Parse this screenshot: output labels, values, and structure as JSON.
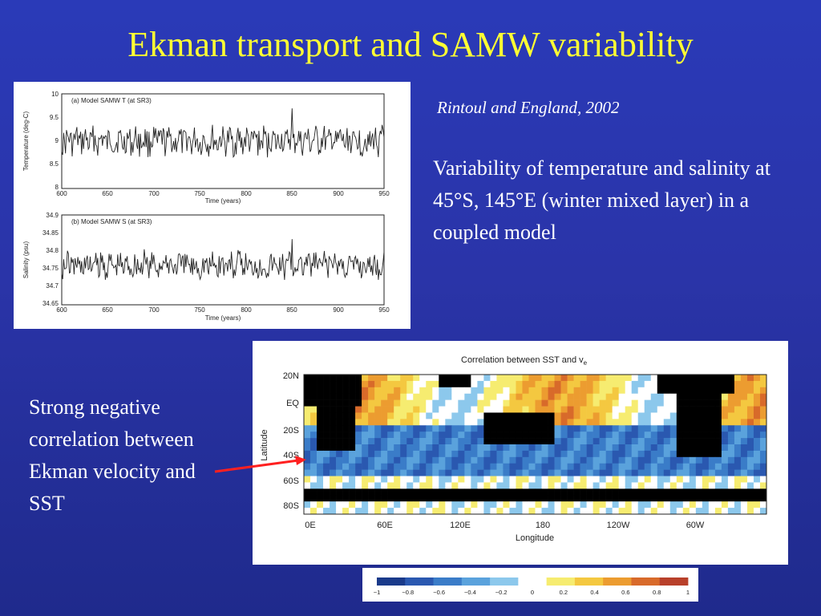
{
  "slide": {
    "title": "Ekman transport and SAMW variability",
    "citation": "Rintoul and England, 2002",
    "description": "Variability of temperature and salinity at 45°S, 145°E (winter mixed layer) in a coupled model",
    "callout": "Strong negative correlation between Ekman velocity and SST"
  },
  "timeseries": {
    "top": {
      "label": "(a) Model SAMW T (at SR3)",
      "ylabel": "Temperature (deg-C)",
      "yticks": [
        "10",
        "9.5",
        "9",
        "8.5",
        "8"
      ],
      "xticks": [
        "600",
        "650",
        "700",
        "750",
        "800",
        "850",
        "900",
        "950"
      ],
      "xlabel": "Time (years)"
    },
    "bottom": {
      "label": "(b) Model SAMW S (at SR3)",
      "ylabel": "Salinity (psu)",
      "yticks": [
        "34.9",
        "34.85",
        "34.8",
        "34.75",
        "34.7",
        "34.65"
      ],
      "xticks": [
        "600",
        "650",
        "700",
        "750",
        "800",
        "850",
        "900",
        "950"
      ],
      "xlabel": "Time (years)"
    }
  },
  "map": {
    "title": "Correlation between SST and v",
    "title_sub": "e",
    "ylabel": "Latitude",
    "xlabel": "Longitude",
    "yticks": [
      "20N",
      "EQ",
      "20S",
      "40S",
      "60S",
      "80S"
    ],
    "xticks": [
      "0E",
      "60E",
      "120E",
      "180",
      "120W",
      "60W"
    ]
  },
  "colorbar": {
    "ticks": [
      "−1",
      "−0.8",
      "−0.6",
      "−0.4",
      "−0.2",
      "0",
      "0.2",
      "0.4",
      "0.6",
      "0.8",
      "1"
    ],
    "colors": [
      "#1a3a8a",
      "#2a58b0",
      "#3a7cc8",
      "#5aa2dc",
      "#8cc8ec",
      "#ffffff",
      "#f6ec70",
      "#f4c840",
      "#ec9c30",
      "#d86a2a",
      "#b8402a"
    ]
  }
}
